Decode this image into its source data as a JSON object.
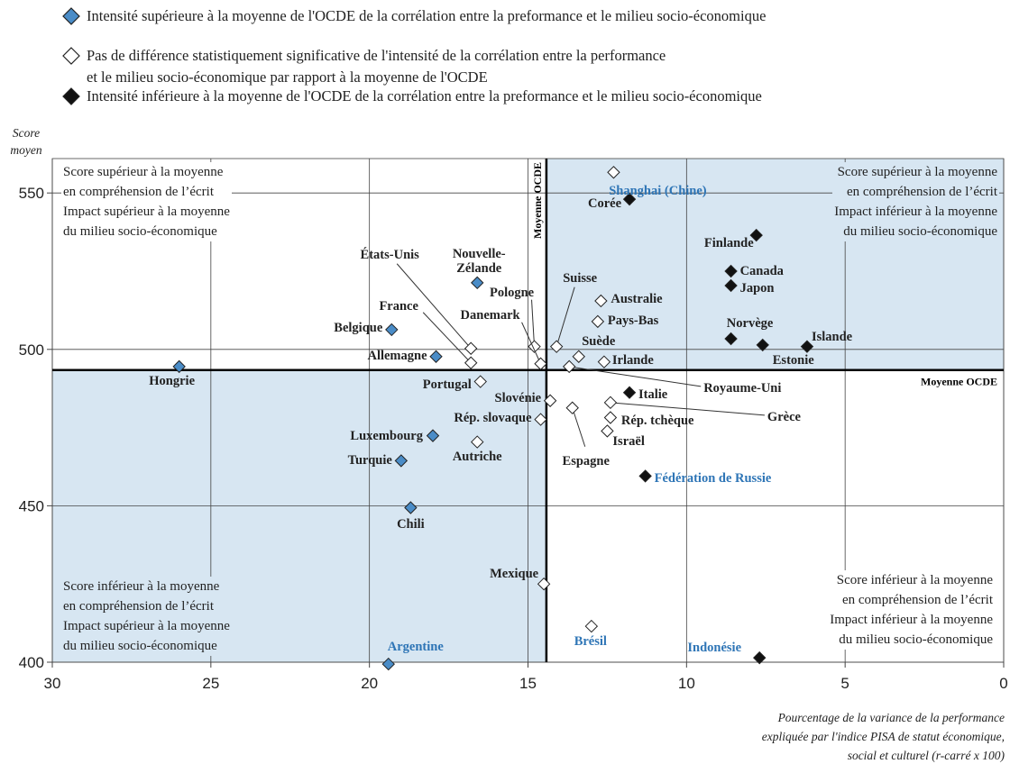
{
  "chart_data": {
    "type": "scatter",
    "legend": "top",
    "y_label": "Score\nmoyen",
    "x_label": "Pourcentage de la variance de la performance\nexpliquée par l'indice PISA de statut économique,\nsocial et culturel (r-carré x 100)",
    "xlim": [
      30,
      0
    ],
    "ylim": [
      400,
      561
    ],
    "xticks": [
      30,
      25,
      20,
      15,
      10,
      5,
      0
    ],
    "yticks": [
      400,
      450,
      500,
      550
    ],
    "grid": true,
    "oecd_mean": {
      "x": 14.42,
      "y": 493.4,
      "label": "Moyenne OCDE"
    },
    "shade_color": "#d7e6f2",
    "annotations": [
      "Score supérieur à la moyenne\nen compréhension de l’écrit\nImpact supérieur à la moyenne\ndu milieu socio-économique",
      "Score supérieur à la moyenne\nen compréhension de l’écrit\nImpact inférieur à la moyenne\ndu milieu socio-économique",
      "Score inférieur à la moyenne\nen compréhension de l’écrit\nImpact supérieur à la moyenne\ndu milieu socio-économique",
      "Score inférieur à la moyenne\nen compréhension de l’écrit\nImpact inférieur à la moyenne\ndu milieu socio-économique"
    ],
    "series": [
      {
        "name": "Intensité supérieure à la moyenne de l'OCDE de la corrélation entre la preformance et le milieu socio-économique",
        "color": "#4a8cc7",
        "labels": [
          "Hongrie",
          "Belgique",
          "Allemagne",
          "Nouvelle-\nZélande",
          "Luxembourg",
          "Turquie",
          "Chili",
          "Argentine"
        ],
        "x": [
          26.0,
          19.3,
          17.9,
          16.6,
          18.0,
          19.0,
          18.7,
          19.4
        ],
        "y": [
          494.5,
          506.3,
          497.7,
          521.3,
          472.4,
          464.4,
          449.4,
          399.4
        ],
        "label_colors": [
          "#222",
          "#222",
          "#222",
          "#222",
          "#222",
          "#222",
          "#222",
          "#2e75b6"
        ]
      },
      {
        "name": "Pas de différence statistiquement significative de l'intensité de la corrélation entre la performance\net le milieu socio-économique par rapport à la moyenne de l'OCDE",
        "color": "#ffffff",
        "labels": [
          "Shanghai (Chine)",
          "États-Unis",
          "France",
          "Pologne",
          "Danemark",
          "Suisse",
          "Australie",
          "Pays-Bas",
          "Suède",
          "Irlande",
          "Royaume-Uni",
          "Portugal",
          "Slovénie",
          "Rép. slovaque",
          "Espagne",
          "Grèce",
          "Rép. tchèque",
          "Israël",
          "Autriche",
          "Mexique",
          "Brésil"
        ],
        "x": [
          12.3,
          16.8,
          16.8,
          14.8,
          14.6,
          14.1,
          12.7,
          12.8,
          13.4,
          12.6,
          13.7,
          16.5,
          14.3,
          14.6,
          13.6,
          12.4,
          12.4,
          12.5,
          16.6,
          14.5,
          13.0
        ],
        "y": [
          556.6,
          500.3,
          495.7,
          500.9,
          495.4,
          500.9,
          515.5,
          508.9,
          497.7,
          496.0,
          494.5,
          489.7,
          483.6,
          477.6,
          481.3,
          483.0,
          478.2,
          473.9,
          470.4,
          425.0,
          411.5
        ],
        "label_colors": [
          "#2e75b6",
          "#222",
          "#222",
          "#222",
          "#222",
          "#222",
          "#222",
          "#222",
          "#222",
          "#222",
          "#222",
          "#222",
          "#222",
          "#222",
          "#222",
          "#222",
          "#222",
          "#222",
          "#222",
          "#222",
          "#2e75b6"
        ]
      },
      {
        "name": "Intensité inférieure à la moyenne de l'OCDE de la corrélation entre la preformance et le milieu socio-économique",
        "color": "#111111",
        "labels": [
          "Corée",
          "Finlande",
          "Canada",
          "Japon",
          "Norvège",
          "Estonie",
          "Islande",
          "Italie",
          "Fédération de Russie",
          "Indonésie"
        ],
        "x": [
          11.8,
          7.8,
          8.6,
          8.6,
          8.6,
          7.6,
          6.2,
          11.8,
          11.3,
          7.7
        ],
        "y": [
          548.0,
          536.5,
          525.0,
          520.4,
          503.4,
          501.4,
          500.9,
          486.2,
          459.5,
          401.4
        ],
        "label_colors": [
          "#222",
          "#222",
          "#222",
          "#222",
          "#222",
          "#222",
          "#222",
          "#222",
          "#2e75b6",
          "#2e75b6"
        ]
      }
    ]
  }
}
